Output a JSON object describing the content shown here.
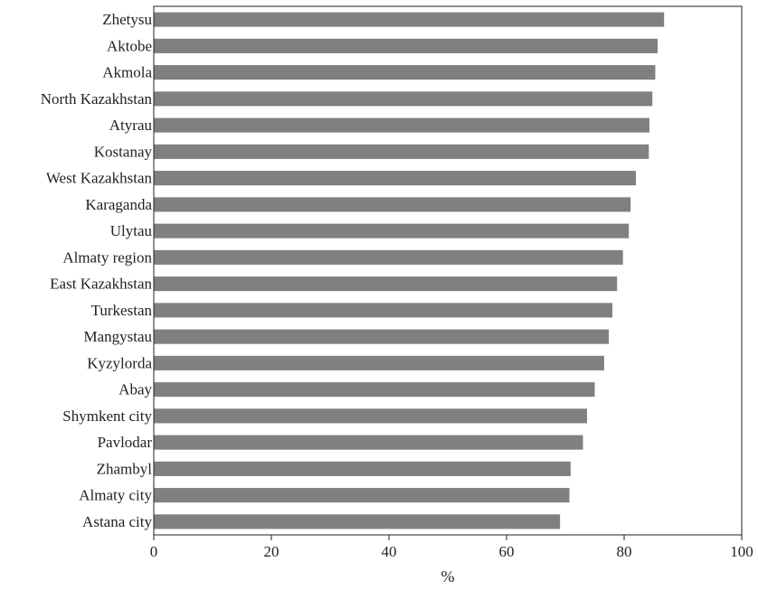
{
  "chart_data": {
    "type": "bar",
    "orientation": "horizontal",
    "categories": [
      "Zhetysu",
      "Aktobe",
      "Akmola",
      "North Kazakhstan",
      "Atyrau",
      "Kostanay",
      "West Kazakhstan",
      "Karaganda",
      "Ulytau",
      "Almaty region",
      "East Kazakhstan",
      "Turkestan",
      "Mangystau",
      "Kyzylorda",
      "Abay",
      "Shymkent city",
      "Pavlodar",
      "Zhambyl",
      "Almaty city",
      "Astana city"
    ],
    "values": [
      86.8,
      85.7,
      85.3,
      84.8,
      84.3,
      84.2,
      82.0,
      81.1,
      80.8,
      79.8,
      78.8,
      78.0,
      77.4,
      76.6,
      75.0,
      73.7,
      73.0,
      70.9,
      70.7,
      69.1
    ],
    "title": "",
    "xlabel": "%",
    "ylabel": "",
    "xlim": [
      0,
      100
    ],
    "xticks": [
      "0",
      "20",
      "40",
      "60",
      "80",
      "100"
    ],
    "grid": false,
    "bar_color": "#808080",
    "axis_color": "#222222"
  }
}
